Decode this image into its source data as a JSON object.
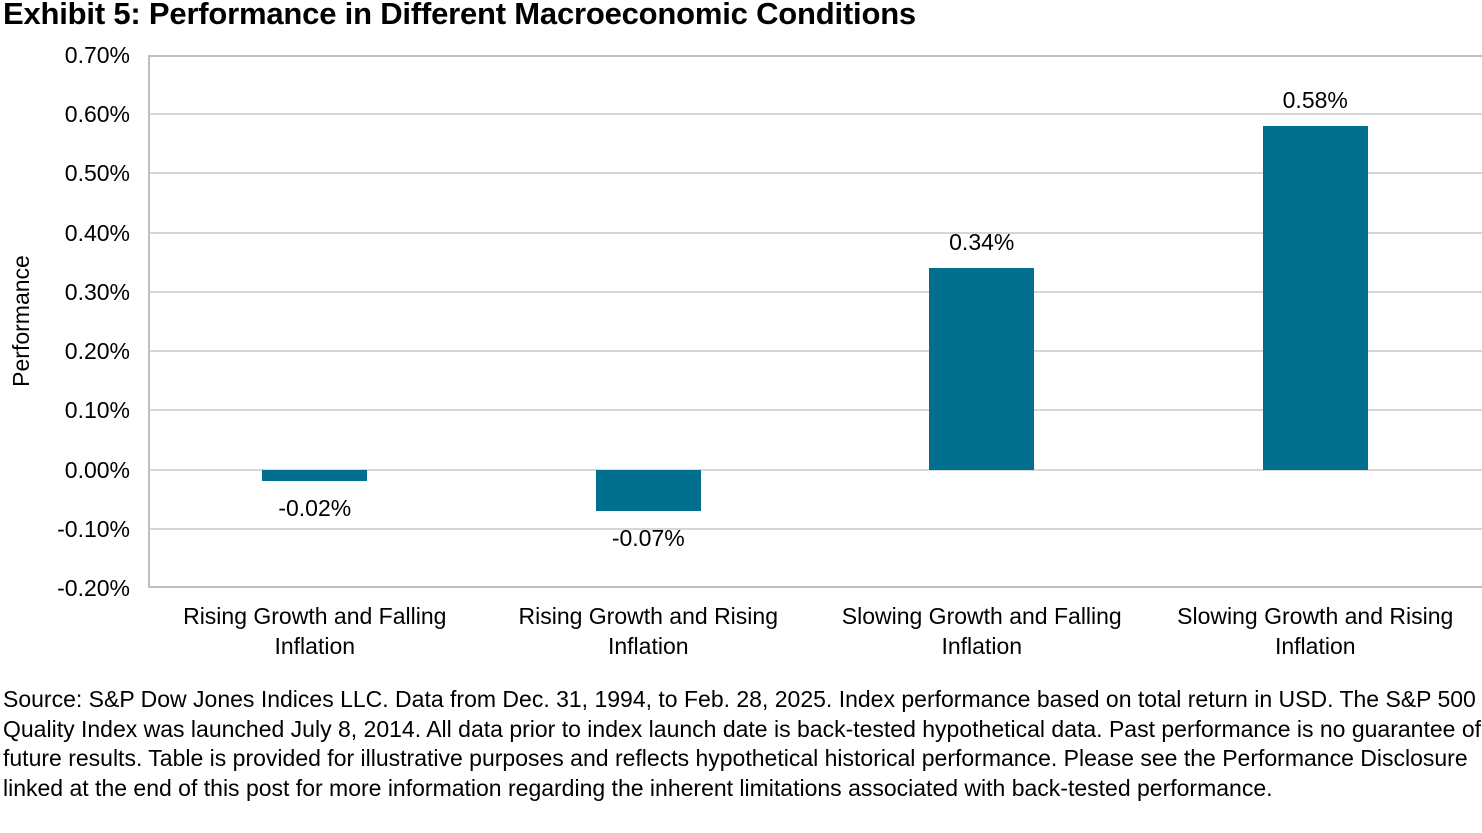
{
  "page": {
    "title": "Exhibit 5: Performance in Different Macroeconomic Conditions",
    "footer": "Source: S&P Dow Jones Indices LLC. Data from Dec. 31, 1994, to Feb. 28, 2025. Index performance based on total return in USD. The S&P 500 Quality Index was launched July 8, 2014. All data prior to index launch date is back-tested hypothetical data. Past performance is no guarantee of future results. Table is provided for illustrative purposes and reflects hypothetical historical performance. Please see the Performance Disclosure linked at the end of this post for more information regarding the inherent limitations associated with back-tested performance."
  },
  "chart_data": {
    "type": "bar",
    "title": "Exhibit 5: Performance in Different Macroeconomic Conditions",
    "categories": [
      "Rising Growth and Falling Inflation",
      "Rising Growth and Rising Inflation",
      "Slowing Growth and Falling Inflation",
      "Slowing Growth and Rising Inflation"
    ],
    "values": [
      -0.02,
      -0.07,
      0.34,
      0.58
    ],
    "value_labels": [
      "-0.02%",
      "-0.07%",
      "0.34%",
      "0.58%"
    ],
    "xlabel": "",
    "ylabel": "Performance",
    "ylim": [
      -0.2,
      0.7
    ],
    "ytick_step": 0.1,
    "ytick_format": "0.00%",
    "grid": "horizontal",
    "legend": "none",
    "bar_color": "#01708F",
    "gridline_color": "#D6D6D6",
    "axis_border_color": "#C0C0C0",
    "text_color": "#000000"
  }
}
